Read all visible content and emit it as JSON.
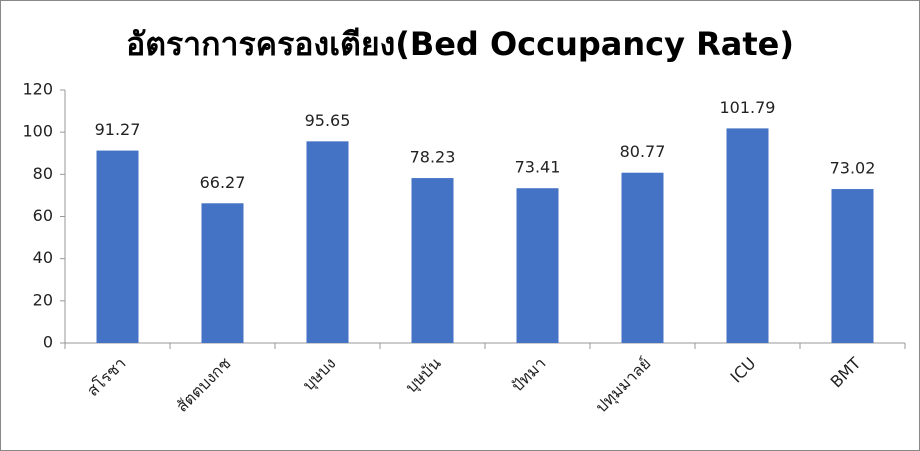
{
  "chart_data": {
    "type": "bar",
    "title": "อัตราการครองเตียง(Bed Occupancy Rate)",
    "categories": [
      "สโรชา",
      "สัตตบงกช",
      "บุษบง",
      "บุษบัน",
      "ปัทมา",
      "ปทุมมาลย์",
      "ICU",
      "BMT"
    ],
    "values": [
      91.27,
      66.27,
      95.65,
      78.23,
      73.41,
      80.77,
      101.79,
      73.02
    ],
    "color": "#4472c4",
    "ylim": [
      0,
      120
    ],
    "yticks": [
      0,
      20,
      40,
      60,
      80,
      100,
      120
    ],
    "grid": false
  }
}
